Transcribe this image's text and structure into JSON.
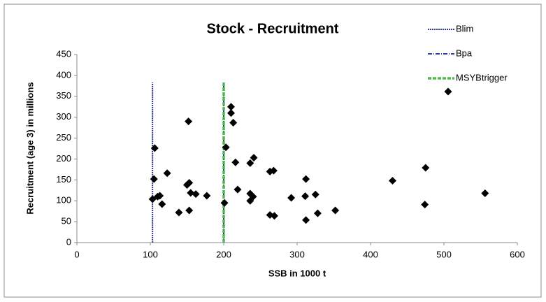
{
  "chart_data": {
    "type": "scatter",
    "title": "Stock - Recruitment",
    "x_label": "SSB in 1000 t",
    "y_label": "Recruitment (age 3) in millions",
    "xlim": [
      0,
      600
    ],
    "xticks": [
      0,
      100,
      200,
      300,
      400,
      500,
      600
    ],
    "ylim": [
      0,
      450
    ],
    "yticks": [
      0,
      50,
      100,
      150,
      200,
      250,
      300,
      350,
      400,
      450
    ],
    "grid": false,
    "legend": "top-right",
    "series": [
      {
        "name": "Blim",
        "color": "#2e3a9c",
        "dash": "2,1",
        "x": [
          103,
          103
        ],
        "values": [
          0,
          383
        ]
      },
      {
        "name": "Bpa",
        "color": "#2e3a9c",
        "dash": "6,2,1,2",
        "x": [
          200,
          200
        ],
        "values": [
          0,
          383
        ]
      },
      {
        "name": "MSYBtrigger",
        "color": "#4cbb4c",
        "dash": "5,2",
        "x": [
          200,
          200
        ],
        "values": [
          0,
          383
        ]
      },
      {
        "color": "#000000",
        "marker": "diamond",
        "x": [
          106,
          105,
          103,
          110,
          113,
          116,
          123,
          139,
          150,
          153,
          152,
          155,
          153,
          162,
          177,
          201,
          203,
          210,
          210,
          213,
          216,
          219,
          236,
          241,
          236,
          240,
          236,
          263,
          268,
          263,
          269,
          292,
          311,
          312,
          312,
          325,
          328,
          352,
          430,
          474,
          475,
          556
        ],
        "values": [
          226,
          152,
          104,
          110,
          112,
          92,
          166,
          72,
          138,
          143,
          290,
          119,
          77,
          116,
          112,
          95,
          228,
          325,
          310,
          287,
          192,
          127,
          190,
          203,
          117,
          110,
          100,
          170,
          172,
          66,
          64,
          107,
          111,
          152,
          54,
          115,
          70,
          77,
          148,
          91,
          179,
          118
        ]
      }
    ]
  }
}
